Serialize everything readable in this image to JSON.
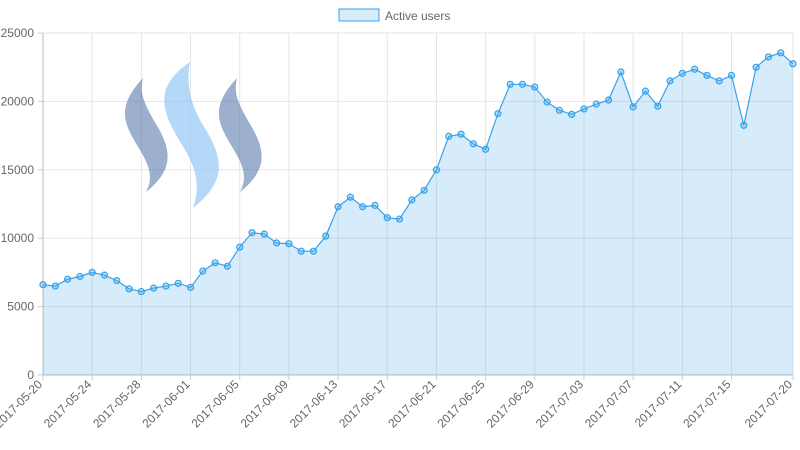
{
  "chart_data": {
    "type": "line",
    "categories": [
      "2017-05-20",
      null,
      null,
      null,
      "2017-05-24",
      null,
      null,
      null,
      "2017-05-28",
      null,
      null,
      null,
      "2017-06-01",
      null,
      null,
      null,
      "2017-06-05",
      null,
      null,
      null,
      "2017-06-09",
      null,
      null,
      null,
      "2017-06-13",
      null,
      null,
      null,
      "2017-06-17",
      null,
      null,
      null,
      "2017-06-21",
      null,
      null,
      null,
      "2017-06-25",
      null,
      null,
      null,
      "2017-06-29",
      null,
      null,
      null,
      "2017-07-03",
      null,
      null,
      null,
      "2017-07-07",
      null,
      null,
      null,
      "2017-07-11",
      null,
      null,
      null,
      "2017-07-15",
      null,
      null,
      null,
      null,
      "2017-07-20"
    ],
    "series": [
      {
        "name": "Active users",
        "color": "#36a2eb",
        "values": [
          6600,
          6500,
          7000,
          7200,
          7500,
          7300,
          6900,
          6300,
          6100,
          6350,
          6500,
          6700,
          6400,
          7600,
          8200,
          7950,
          9350,
          10400,
          10300,
          9650,
          9600,
          9050,
          9050,
          10150,
          12300,
          13000,
          12300,
          12400,
          11500,
          11400,
          12800,
          13500,
          15000,
          17450,
          17600,
          16900,
          16500,
          19100,
          21250,
          21250,
          21050,
          19950,
          19350,
          19050,
          19450,
          19800,
          20100,
          22150,
          19600,
          20750,
          19650,
          21500,
          22050,
          22350,
          21900,
          21500,
          21900,
          18250,
          22500,
          23250,
          23550,
          22750
        ]
      }
    ],
    "ylim": [
      0,
      25000
    ],
    "yticks": [
      0,
      5000,
      10000,
      15000,
      20000,
      25000
    ],
    "grid": true,
    "fill": true,
    "legend": "top"
  }
}
